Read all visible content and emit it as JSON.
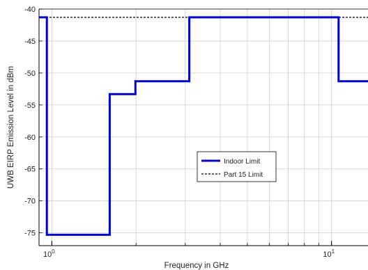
{
  "chart_data": {
    "type": "line",
    "title": "",
    "xlabel": "Frequency in GHz",
    "ylabel": "UWB EIRP Emission Level in dBm",
    "x_scale": "log",
    "xlim": [
      0.9,
      13.5
    ],
    "ylim": [
      -77,
      -40
    ],
    "grid": true,
    "legend_placement": "center-right",
    "y_ticks": [
      {
        "value": -40,
        "label": "-40"
      },
      {
        "value": -45,
        "label": "-45"
      },
      {
        "value": -50,
        "label": "-50"
      },
      {
        "value": -55,
        "label": "-55"
      },
      {
        "value": -60,
        "label": "-60"
      },
      {
        "value": -65,
        "label": "-65"
      },
      {
        "value": -70,
        "label": "-70"
      },
      {
        "value": -75,
        "label": "-75"
      }
    ],
    "x_ticks": [
      {
        "value": 1,
        "base": "10",
        "exp": "0"
      },
      {
        "value": 10,
        "base": "10",
        "exp": "1"
      }
    ],
    "series": [
      {
        "name": "Indoor Limit",
        "color": "#0000cc",
        "style": "solid",
        "x": [
          0.9,
          0.96,
          0.96,
          1.61,
          1.61,
          1.99,
          1.99,
          3.1,
          3.1,
          10.6,
          10.6,
          13.5
        ],
        "y": [
          -41.3,
          -41.3,
          -75.3,
          -75.3,
          -53.3,
          -53.3,
          -51.3,
          -51.3,
          -41.3,
          -41.3,
          -51.3,
          -51.3
        ]
      },
      {
        "name": "Part 15 Limit",
        "color": "#000000",
        "style": "dashed",
        "x": [
          0.9,
          13.5
        ],
        "y": [
          -41.3,
          -41.3
        ]
      }
    ]
  }
}
